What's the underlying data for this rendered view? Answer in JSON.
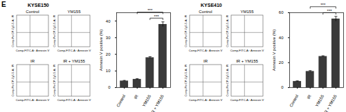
{
  "panel_label": "E",
  "panels": [
    {
      "cell_line": "KYSE150",
      "flow_cytometry": {
        "plots": [
          "Control",
          "YM155",
          "IR",
          "IR + YM155"
        ],
        "x_label": "Comp-FITC-A:: Annexin V",
        "y_label": "Comp-PerCP-Cy5-5-A:: PI"
      }
    },
    {
      "cell_line": "KYSE410",
      "flow_cytometry": {
        "plots": [
          "Control",
          "YM155",
          "IR",
          "IR + YM155"
        ],
        "x_label": "Comp-FITC-A:: Annexin V",
        "y_label": "Comp-PerCP-Cy5-5-A:: PI"
      }
    }
  ],
  "chart_data": [
    {
      "type": "bar",
      "categories": [
        "Control",
        "IR",
        "YM155",
        "IR + YM155"
      ],
      "values": [
        4,
        5,
        18,
        38
      ],
      "errors": [
        0.3,
        0.4,
        0.6,
        1.5
      ],
      "color": "#3a3a3a",
      "y_label": "Annexin V positive (%)",
      "ylim": [
        0,
        45
      ],
      "yticks": [
        0,
        10,
        20,
        30,
        40
      ],
      "annotations": [
        {
          "text": "***",
          "between": [
            "IR",
            "IR + YM155"
          ]
        },
        {
          "text": "***",
          "between": [
            "YM155",
            "IR + YM155"
          ]
        }
      ]
    },
    {
      "type": "bar",
      "categories": [
        "Control",
        "IR",
        "YM155",
        "IR + YM155"
      ],
      "values": [
        5,
        13,
        25,
        55
      ],
      "errors": [
        0.4,
        0.6,
        0.5,
        2
      ],
      "color": "#3a3a3a",
      "y_label": "Annexin V positive (%)",
      "ylim": [
        0,
        60
      ],
      "yticks": [
        0,
        20,
        40,
        60
      ],
      "annotations": [
        {
          "text": "***",
          "between": [
            "IR",
            "IR + YM155"
          ]
        },
        {
          "text": "***",
          "between": [
            "YM155",
            "IR + YM155"
          ]
        }
      ]
    }
  ]
}
